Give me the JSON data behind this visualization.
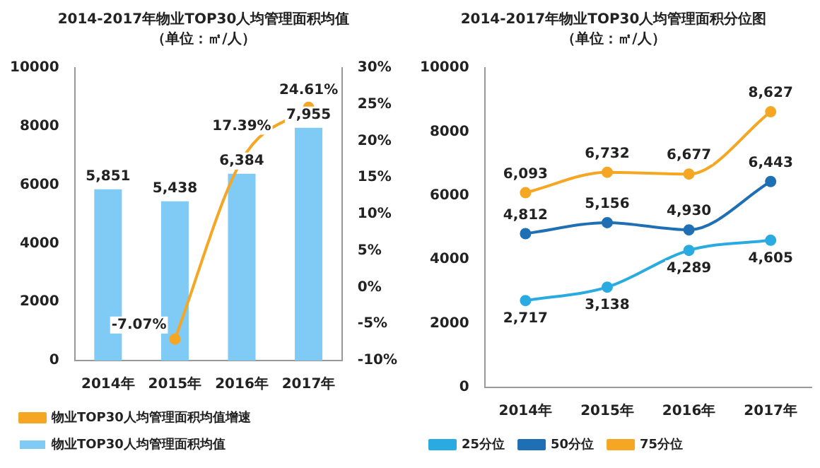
{
  "chart_data": [
    {
      "type": "bar",
      "title": "2014-2017年物业TOP30人均管理面积均值",
      "subtitle": "（单位：㎡/人）",
      "categories": [
        "2014年",
        "2015年",
        "2016年",
        "2017年"
      ],
      "series": [
        {
          "type": "bar",
          "name": "物业TOP30人均管理面积均值",
          "color": "#7fcbf5",
          "values": [
            5851,
            5438,
            6384,
            7955
          ],
          "value_labels": [
            "5,851",
            "5,438",
            "6,384",
            "7,955"
          ]
        },
        {
          "type": "line",
          "name": "物业TOP30人均管理面积均值增速",
          "color": "#f5a623",
          "axis": "y2",
          "values": [
            null,
            -7.07,
            17.39,
            24.61
          ],
          "value_labels": [
            null,
            "-7.07%",
            "17.39%",
            "24.61%"
          ]
        }
      ],
      "ylim": [
        0,
        10000
      ],
      "yticks": [
        0,
        2000,
        4000,
        6000,
        8000,
        10000
      ],
      "y2lim": [
        -10,
        30
      ],
      "y2ticks": [
        {
          "value": -10,
          "label": "-10%"
        },
        {
          "value": -5,
          "label": "-5%"
        },
        {
          "value": 0,
          "label": "0%"
        },
        {
          "value": 5,
          "label": "5%"
        },
        {
          "value": 10,
          "label": "10%"
        },
        {
          "value": 15,
          "label": "15%"
        },
        {
          "value": 20,
          "label": "20%"
        },
        {
          "value": 25,
          "label": "25%"
        },
        {
          "value": 30,
          "label": "30%"
        }
      ],
      "grid": false,
      "legend": "bottom",
      "marker": "circle"
    },
    {
      "type": "line",
      "title": "2014-2017年物业TOP30人均管理面积分位图",
      "subtitle": "（单位：㎡/人）",
      "categories": [
        "2014年",
        "2015年",
        "2016年",
        "2017年"
      ],
      "series": [
        {
          "name": "25分位",
          "color": "#29abe2",
          "values": [
            2717,
            3138,
            4289,
            4605
          ],
          "value_labels": [
            "2,717",
            "3,138",
            "4,289",
            "4,605"
          ]
        },
        {
          "name": "50分位",
          "color": "#1f6fb4",
          "values": [
            4812,
            5156,
            4930,
            6443
          ],
          "value_labels": [
            "4,812",
            "5,156",
            "4,930",
            "6,443"
          ]
        },
        {
          "name": "75分位",
          "color": "#f5a623",
          "values": [
            6093,
            6732,
            6677,
            8627
          ],
          "value_labels": [
            "6,093",
            "6,732",
            "6,677",
            "8,627"
          ]
        }
      ],
      "ylim": [
        0,
        10000
      ],
      "yticks": [
        0,
        2000,
        4000,
        6000,
        8000,
        10000
      ],
      "grid": false,
      "legend": "bottom",
      "marker": "circle"
    }
  ]
}
